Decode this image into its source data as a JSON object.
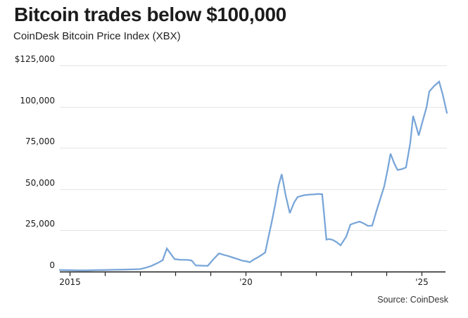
{
  "chart_data": {
    "type": "line",
    "title": "Bitcoin trades below $100,000",
    "subtitle": "CoinDesk Bitcoin Price Index (XBX)",
    "source": "Source: CoinDesk",
    "line_color": "#78a5d8",
    "grid_color": "#e4e4e4",
    "axis_color": "#1a1a1a",
    "label_color": "#1a1a1a",
    "grid_on": true,
    "legend": "none",
    "xlim": [
      2014.72,
      2025.71
    ],
    "ylim": [
      0,
      125000
    ],
    "yticks": [
      {
        "value": 125000,
        "label": "$125,000"
      },
      {
        "value": 100000,
        "label": "100,000"
      },
      {
        "value": 75000,
        "label": "75,000"
      },
      {
        "value": 50000,
        "label": "50,000"
      },
      {
        "value": 25000,
        "label": "25,000"
      },
      {
        "value": 0,
        "label": "0"
      }
    ],
    "xticks": [
      {
        "value": 2015,
        "label": "2015"
      },
      {
        "value": 2016,
        "label": ""
      },
      {
        "value": 2017,
        "label": ""
      },
      {
        "value": 2018,
        "label": ""
      },
      {
        "value": 2019,
        "label": ""
      },
      {
        "value": 2020,
        "label": "'20"
      },
      {
        "value": 2021,
        "label": ""
      },
      {
        "value": 2022,
        "label": ""
      },
      {
        "value": 2023,
        "label": ""
      },
      {
        "value": 2024,
        "label": ""
      },
      {
        "value": 2025,
        "label": "'25"
      }
    ],
    "series": [
      {
        "name": "CoinDesk Bitcoin Price Index (XBX)",
        "points": [
          [
            2014.72,
            950
          ],
          [
            2015.0,
            850
          ],
          [
            2015.26,
            730
          ],
          [
            2015.52,
            770
          ],
          [
            2015.76,
            900
          ],
          [
            2016.0,
            980
          ],
          [
            2016.26,
            1110
          ],
          [
            2016.5,
            1190
          ],
          [
            2016.76,
            1320
          ],
          [
            2017.0,
            1490
          ],
          [
            2017.16,
            2300
          ],
          [
            2017.32,
            3460
          ],
          [
            2017.52,
            5420
          ],
          [
            2017.64,
            6910
          ],
          [
            2017.76,
            13950
          ],
          [
            2017.98,
            7550
          ],
          [
            2018.14,
            7130
          ],
          [
            2018.34,
            7080
          ],
          [
            2018.46,
            6740
          ],
          [
            2018.58,
            3710
          ],
          [
            2018.76,
            3580
          ],
          [
            2018.92,
            3460
          ],
          [
            2019.08,
            7470
          ],
          [
            2019.24,
            11010
          ],
          [
            2019.38,
            10110
          ],
          [
            2019.52,
            9300
          ],
          [
            2019.66,
            8320
          ],
          [
            2019.78,
            7510
          ],
          [
            2019.92,
            6480
          ],
          [
            2020.03,
            6190
          ],
          [
            2020.11,
            5630
          ],
          [
            2020.23,
            7290
          ],
          [
            2020.35,
            8750
          ],
          [
            2020.47,
            10370
          ],
          [
            2020.55,
            11560
          ],
          [
            2020.63,
            19620
          ],
          [
            2020.73,
            29440
          ],
          [
            2020.83,
            40100
          ],
          [
            2020.93,
            52050
          ],
          [
            2021.02,
            59100
          ],
          [
            2021.13,
            46500
          ],
          [
            2021.25,
            35450
          ],
          [
            2021.37,
            41800
          ],
          [
            2021.47,
            45200
          ],
          [
            2021.65,
            46300
          ],
          [
            2021.83,
            46700
          ],
          [
            2021.95,
            46800
          ],
          [
            2022.05,
            47100
          ],
          [
            2022.17,
            46900
          ],
          [
            2022.23,
            33300
          ],
          [
            2022.29,
            19400
          ],
          [
            2022.37,
            19700
          ],
          [
            2022.47,
            19200
          ],
          [
            2022.59,
            17700
          ],
          [
            2022.69,
            15900
          ],
          [
            2022.85,
            21100
          ],
          [
            2022.97,
            28500
          ],
          [
            2023.09,
            29400
          ],
          [
            2023.23,
            30300
          ],
          [
            2023.35,
            29200
          ],
          [
            2023.47,
            27700
          ],
          [
            2023.59,
            27900
          ],
          [
            2023.71,
            36700
          ],
          [
            2023.83,
            44800
          ],
          [
            2023.93,
            51600
          ],
          [
            2024.03,
            61900
          ],
          [
            2024.11,
            71500
          ],
          [
            2024.21,
            65900
          ],
          [
            2024.31,
            61600
          ],
          [
            2024.43,
            62100
          ],
          [
            2024.55,
            63100
          ],
          [
            2024.67,
            78100
          ],
          [
            2024.75,
            94400
          ],
          [
            2024.83,
            88700
          ],
          [
            2024.91,
            82500
          ],
          [
            2025.01,
            90400
          ],
          [
            2025.13,
            99500
          ],
          [
            2025.21,
            109200
          ],
          [
            2025.35,
            112600
          ],
          [
            2025.49,
            115200
          ],
          [
            2025.59,
            107500
          ],
          [
            2025.71,
            96200
          ]
        ]
      }
    ]
  }
}
